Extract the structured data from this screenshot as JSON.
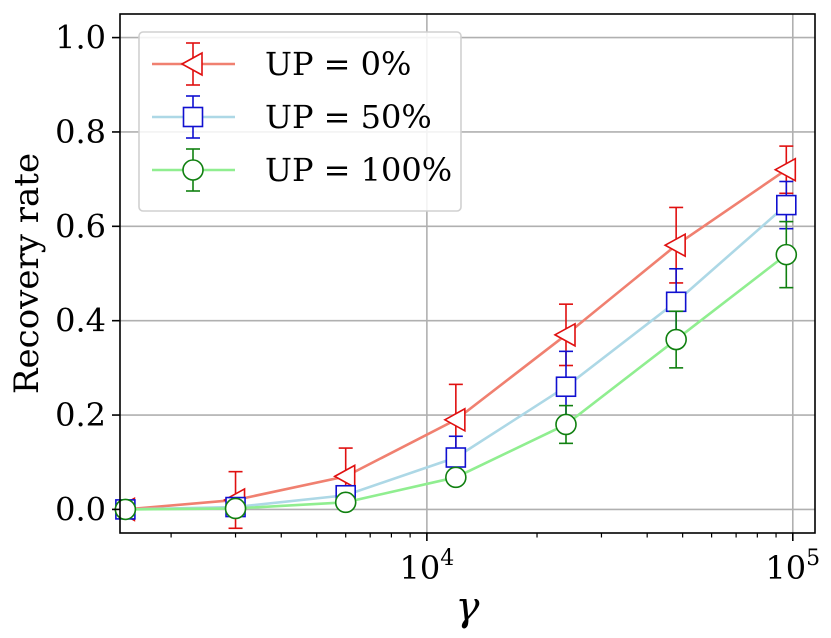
{
  "chart_data": {
    "type": "line",
    "xscale": "log",
    "xlabel": "γ",
    "ylabel": "Recovery rate",
    "xlim": [
      1450,
      115000
    ],
    "ylim": [
      -0.05,
      1.05
    ],
    "x_ticks": [
      {
        "value": 10000,
        "base": "10",
        "exp": "4"
      },
      {
        "value": 100000,
        "base": "10",
        "exp": "5"
      }
    ],
    "y_ticks": [
      {
        "value": 0.0,
        "label": "0.0"
      },
      {
        "value": 0.2,
        "label": "0.2"
      },
      {
        "value": 0.4,
        "label": "0.4"
      },
      {
        "value": 0.6,
        "label": "0.6"
      },
      {
        "value": 0.8,
        "label": "0.8"
      },
      {
        "value": 1.0,
        "label": "1.0"
      }
    ],
    "grid": true,
    "legend_position": "top-left",
    "x": [
      1500,
      3000,
      6000,
      12000,
      24000,
      48000,
      96000
    ],
    "series": [
      {
        "name": "UP = 0%",
        "marker": "triangle-left",
        "line_color": "#F08070",
        "marker_color": "#E01010",
        "values": [
          0.0,
          0.02,
          0.07,
          0.19,
          0.37,
          0.56,
          0.72
        ],
        "errors": [
          0.0,
          0.06,
          0.06,
          0.075,
          0.065,
          0.08,
          0.05
        ]
      },
      {
        "name": "UP = 50%",
        "marker": "square",
        "line_color": "#ADD8E6",
        "marker_color": "#1010D0",
        "values": [
          0.0,
          0.005,
          0.03,
          0.11,
          0.26,
          0.44,
          0.645
        ],
        "errors": [
          0.0,
          0.0,
          0.0,
          0.045,
          0.075,
          0.07,
          0.05
        ]
      },
      {
        "name": "UP = 100%",
        "marker": "circle",
        "line_color": "#90EE90",
        "marker_color": "#108010",
        "values": [
          0.0,
          0.002,
          0.015,
          0.068,
          0.18,
          0.36,
          0.54
        ],
        "errors": [
          0.0,
          0.0,
          0.0,
          0.0,
          0.04,
          0.06,
          0.07
        ]
      }
    ]
  }
}
